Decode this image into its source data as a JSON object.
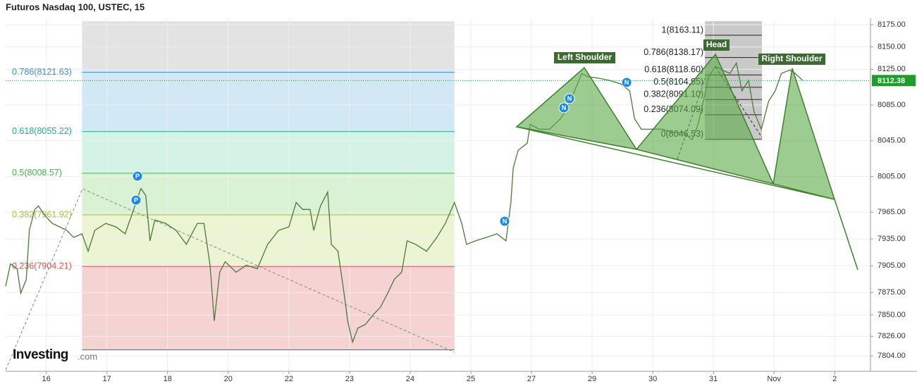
{
  "chart_data": {
    "type": "line",
    "title": "Futuros Nasdaq 100, USTEC, 15",
    "x": [
      -0.67,
      -0.59,
      -0.48,
      -0.42,
      -0.33,
      -0.28,
      -0.19,
      -0.13,
      -0.01,
      0.1,
      0.22,
      0.34,
      0.45,
      0.59,
      0.69,
      0.8,
      0.98,
      1.15,
      1.3,
      1.44,
      1.56,
      1.64,
      1.71,
      1.79,
      1.97,
      2.14,
      2.31,
      2.49,
      2.6,
      2.7,
      2.77,
      2.86,
      2.95,
      3.13,
      3.3,
      3.48,
      3.65,
      3.83,
      4.0,
      4.12,
      4.23,
      4.35,
      4.41,
      4.52,
      4.64,
      4.7,
      4.81,
      4.91,
      4.97,
      5.05,
      5.14,
      5.26,
      5.4,
      5.51,
      5.63,
      5.74,
      5.86,
      5.95,
      6.09,
      6.27,
      6.44,
      6.58,
      6.73,
      6.85,
      6.93,
      7.08,
      7.26,
      7.43,
      7.58,
      7.66,
      7.7,
      7.78,
      7.93,
      7.98,
      8.13,
      8.3,
      8.48,
      8.59,
      8.71,
      8.83,
      8.94,
      9.12,
      9.29,
      9.47,
      9.62,
      9.7,
      9.81,
      9.99,
      10.16,
      10.34,
      10.51,
      10.65,
      10.74,
      10.86,
      10.92,
      11.03,
      11.15,
      11.27,
      11.38,
      11.47,
      11.58,
      11.67,
      11.79,
      11.91,
      12.02,
      12.12,
      12.26,
      12.35,
      12.47
    ],
    "values": [
      7882.1,
      7907.1,
      7901.7,
      7874.3,
      7889.9,
      7944.6,
      7968.0,
      7971.9,
      7960.2,
      7952.4,
      7948.5,
      7944.6,
      7936.8,
      7940.7,
      7921.2,
      7944.6,
      7952.4,
      7948.5,
      7940.7,
      7968.0,
      7991.5,
      7983.7,
      7932.9,
      7956.3,
      7952.4,
      7944.6,
      7929.0,
      7952.4,
      7952.4,
      7905.6,
      7843.1,
      7897.7,
      7909.5,
      7897.7,
      7905.6,
      7901.7,
      7929.0,
      7944.6,
      7948.5,
      7975.8,
      7968.0,
      7968.0,
      7944.6,
      7971.9,
      7987.6,
      7929.0,
      7921.2,
      7874.3,
      7843.1,
      7819.6,
      7835.3,
      7839.2,
      7850.9,
      7858.7,
      7874.3,
      7889.9,
      7897.7,
      7932.9,
      7929.0,
      7921.2,
      7936.8,
      7952.4,
      7975.8,
      7952.4,
      7929.0,
      7932.9,
      7936.8,
      7940.7,
      7932.9,
      7975.8,
      8014.9,
      8034.4,
      8042.2,
      8063.3,
      8057.9,
      8057.9,
      8069.6,
      8081.3,
      8100.8,
      8120.3,
      8116.4,
      8114.9,
      8112.5,
      8108.6,
      8100.8,
      8069.6,
      8057.9,
      8057.9,
      8057.9,
      8054.0,
      8054.0,
      8046.1,
      8061.8,
      8096.9,
      8116.4,
      8128.1,
      8124.2,
      8120.3,
      8132.0,
      8100.8,
      8112.5,
      8077.4,
      8057.9,
      8089.1,
      8100.8,
      8120.3,
      8124.2,
      8120.3,
      8112.5
    ],
    "color": "#4a7a3a",
    "xlim": [
      -0.67,
      13.59
    ],
    "xticks": [
      {
        "value": 0,
        "label": "16"
      },
      {
        "value": 1,
        "label": "17"
      },
      {
        "value": 2,
        "label": "18"
      },
      {
        "value": 3,
        "label": "20"
      },
      {
        "value": 4,
        "label": "22"
      },
      {
        "value": 5,
        "label": "23"
      },
      {
        "value": 6,
        "label": "24"
      },
      {
        "value": 7,
        "label": "25"
      },
      {
        "value": 8,
        "label": "27"
      },
      {
        "value": 9,
        "label": "29"
      },
      {
        "value": 10,
        "label": "30"
      },
      {
        "value": 11,
        "label": "31"
      },
      {
        "value": 12,
        "label": "Nov"
      },
      {
        "value": 13,
        "label": "2"
      }
    ],
    "ylim": [
      7786.8,
      8178.9
    ],
    "yticks": [
      {
        "value": 8175,
        "label": "8175.00"
      },
      {
        "value": 8150,
        "label": "8150.00"
      },
      {
        "value": 8125,
        "label": "8125.00"
      },
      {
        "value": 8085,
        "label": "8085.00"
      },
      {
        "value": 8045,
        "label": "8045.00"
      },
      {
        "value": 8005,
        "label": "8005.00"
      },
      {
        "value": 7965,
        "label": "7965.00"
      },
      {
        "value": 7935,
        "label": "7935.00"
      },
      {
        "value": 7905,
        "label": "7905.00"
      },
      {
        "value": 7875,
        "label": "7875.00"
      },
      {
        "value": 7850,
        "label": "7850.00"
      },
      {
        "value": 7826,
        "label": "7826.00"
      },
      {
        "value": 7804,
        "label": "7804.00"
      }
    ],
    "grid": true,
    "last_price": 8112.38,
    "last_price_color": "#1f9c2a",
    "fibonacci": [
      {
        "x": [
          0.59,
          6.73
        ],
        "top_fill": "#e3e3e3",
        "low": 7810.9,
        "label_side": "left",
        "levels": [
          {
            "label": "0.786(8121.63)",
            "price": 8121.63,
            "color": "#3a8fc9",
            "fill": "#d3e8f5"
          },
          {
            "label": "0.618(8055.22)",
            "price": 8055.22,
            "color": "#26a69a",
            "fill": "#d4f3e6"
          },
          {
            "label": "0.5(8008.57)",
            "price": 8008.57,
            "color": "#4caf50",
            "fill": "#d9f2d4"
          },
          {
            "label": "0.382(7961.92)",
            "price": 7961.92,
            "color": "#a9bf3f",
            "fill": "#ebf5d3"
          },
          {
            "label": "0.236(7904.21)",
            "price": 7904.21,
            "color": "#d9534f",
            "fill": "#f5d3d3"
          }
        ]
      },
      {
        "x": [
          10.86,
          11.8
        ],
        "top_fill": "#c9c9c9",
        "label_side": "right",
        "levels": [
          {
            "label": "1(8163.11)",
            "price": 8163.11,
            "color": "#222"
          },
          {
            "label": "0.786(8138.17)",
            "price": 8138.17,
            "color": "#222"
          },
          {
            "label": "0.618(8118.60)",
            "price": 8118.6,
            "color": "#222"
          },
          {
            "label": "0.5(8104.85)",
            "price": 8104.85,
            "color": "#222"
          },
          {
            "label": "0.382(8091.10)",
            "price": 8091.1,
            "color": "#222"
          },
          {
            "label": "0.236(8074.09)",
            "price": 8074.09,
            "color": "#222"
          },
          {
            "label": "0(8046.53)",
            "price": 8046.53,
            "color": "#222"
          }
        ]
      }
    ],
    "annotations": [
      "Left Shoulder",
      "Head",
      "Right Shoulder"
    ],
    "markers": [
      "P",
      "P",
      "N",
      "N",
      "N",
      "N"
    ],
    "watermark": {
      "brand": "Investing",
      "suffix": ".com"
    }
  }
}
